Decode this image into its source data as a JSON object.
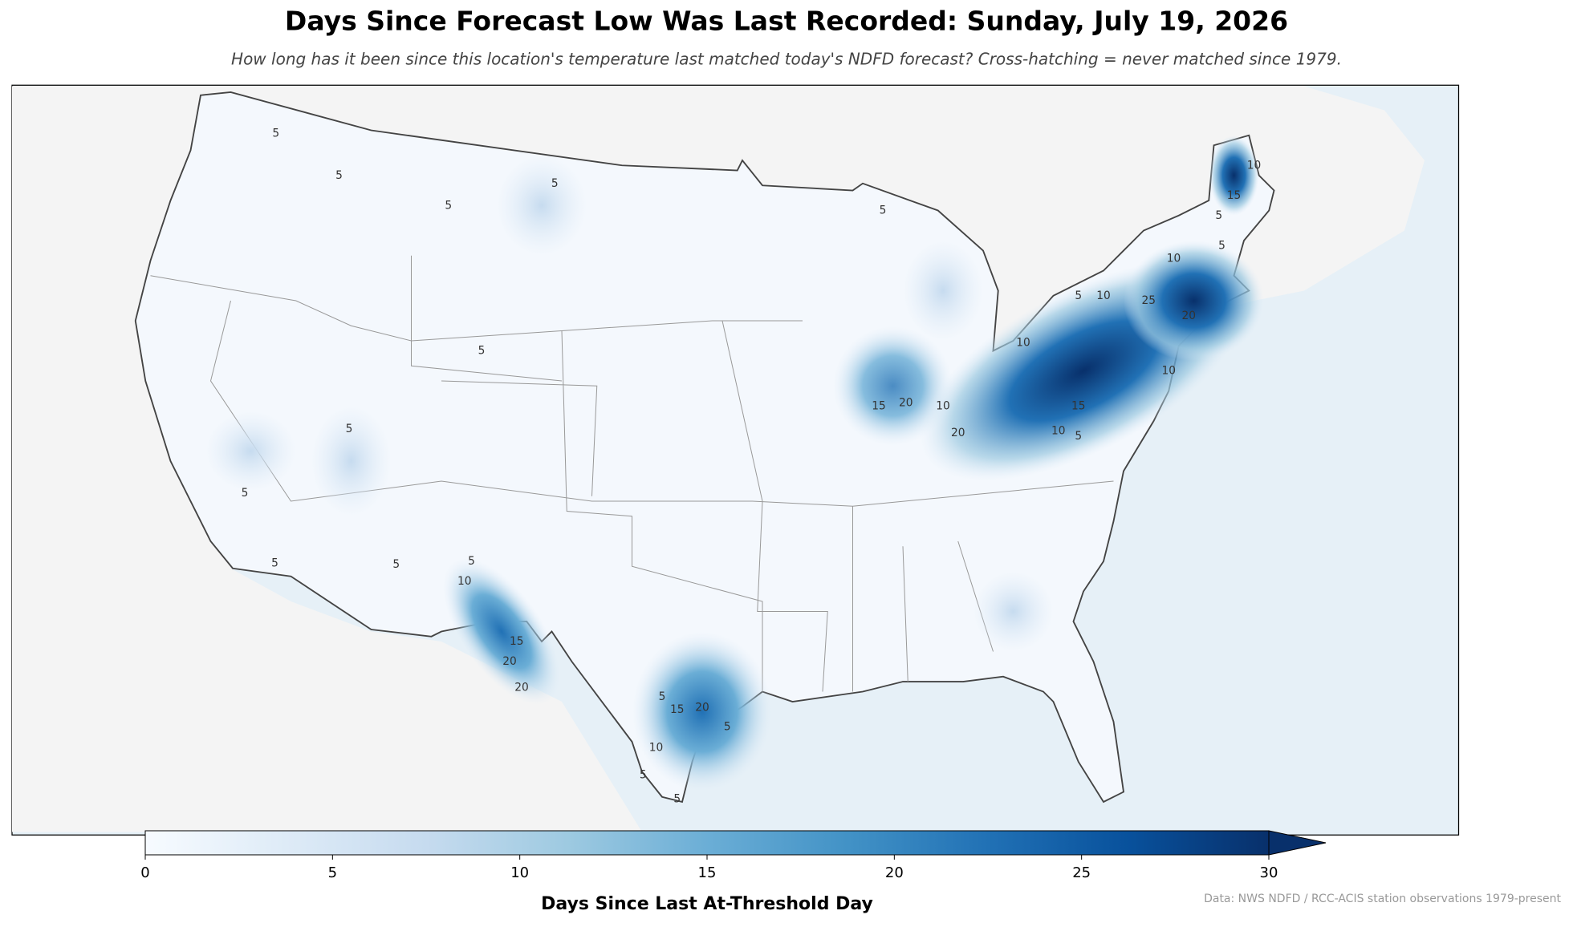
{
  "header": {
    "title": "Days Since Forecast Low Was Last Recorded: Sunday, July 19, 2026",
    "subtitle": "How long has it been since this location's temperature last matched today's NDFD forecast? Cross-hatching = never matched since 1979."
  },
  "colorbar": {
    "label": "Days Since Last At-Threshold Day",
    "lim": [
      0,
      30
    ],
    "ticks": [
      0,
      5,
      10,
      15,
      20,
      25,
      30
    ],
    "colors": [
      "#f7fbff",
      "#deebf7",
      "#c6dbef",
      "#9ecae1",
      "#6baed6",
      "#4292c6",
      "#2171b5",
      "#08519c",
      "#08306b"
    ]
  },
  "contour_labels": [
    5,
    5,
    5,
    5,
    5,
    5,
    5,
    5,
    5,
    5,
    5,
    10,
    15,
    20,
    20,
    5,
    15,
    20,
    5,
    10,
    5,
    5,
    15,
    20,
    10,
    20,
    10,
    5,
    10,
    25,
    10,
    15,
    10,
    5,
    5,
    15,
    10,
    10,
    20,
    5
  ],
  "source": "Data: NWS NDFD / RCC-ACIS station observations 1979-present"
}
